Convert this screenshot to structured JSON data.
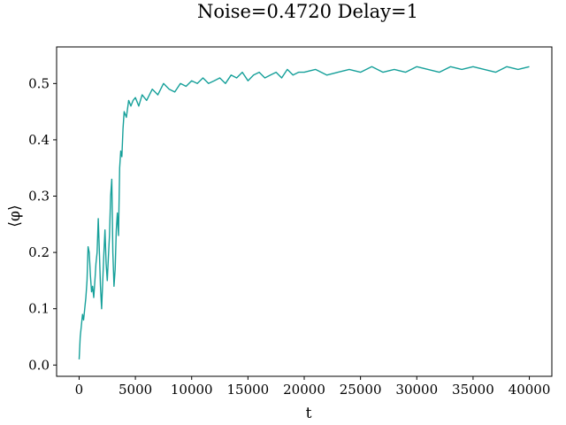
{
  "chart_data": {
    "type": "line",
    "title": "Noise=0.4720 Delay=1",
    "xlabel": "t",
    "ylabel": "⟨φ⟩",
    "xlim": [
      -2000,
      42000
    ],
    "ylim": [
      -0.02,
      0.565
    ],
    "grid": false,
    "x_ticks": [
      0,
      5000,
      10000,
      15000,
      20000,
      25000,
      30000,
      35000,
      40000
    ],
    "x_tick_labels": [
      "0",
      "5000",
      "10000",
      "15000",
      "20000",
      "25000",
      "30000",
      "35000",
      "40000"
    ],
    "y_ticks": [
      0.0,
      0.1,
      0.2,
      0.3,
      0.4,
      0.5
    ],
    "y_tick_labels": [
      "0.0",
      "0.1",
      "0.2",
      "0.3",
      "0.4",
      "0.5"
    ],
    "series": [
      {
        "color": "#16a09a",
        "x": [
          0,
          100,
          200,
          300,
          400,
          500,
          600,
          700,
          800,
          900,
          1000,
          1100,
          1200,
          1300,
          1400,
          1500,
          1600,
          1700,
          1800,
          1900,
          2000,
          2100,
          2200,
          2300,
          2400,
          2500,
          2600,
          2700,
          2800,
          2900,
          3000,
          3100,
          3200,
          3300,
          3400,
          3500,
          3600,
          3700,
          3800,
          3900,
          4000,
          4200,
          4400,
          4600,
          4800,
          5000,
          5300,
          5600,
          6000,
          6500,
          7000,
          7500,
          8000,
          8500,
          9000,
          9500,
          10000,
          10500,
          11000,
          11500,
          12000,
          12500,
          13000,
          13500,
          14000,
          14500,
          15000,
          15500,
          16000,
          16500,
          17000,
          17500,
          18000,
          18500,
          19000,
          19500,
          20000,
          21000,
          22000,
          23000,
          24000,
          25000,
          26000,
          27000,
          28000,
          29000,
          30000,
          31000,
          32000,
          33000,
          34000,
          35000,
          36000,
          37000,
          38000,
          39000,
          40000
        ],
        "y": [
          0.01,
          0.05,
          0.07,
          0.09,
          0.08,
          0.1,
          0.12,
          0.15,
          0.21,
          0.2,
          0.16,
          0.13,
          0.14,
          0.12,
          0.15,
          0.18,
          0.2,
          0.26,
          0.2,
          0.14,
          0.1,
          0.15,
          0.2,
          0.24,
          0.18,
          0.15,
          0.19,
          0.23,
          0.3,
          0.33,
          0.2,
          0.14,
          0.17,
          0.24,
          0.27,
          0.23,
          0.35,
          0.38,
          0.37,
          0.42,
          0.45,
          0.44,
          0.47,
          0.46,
          0.47,
          0.475,
          0.46,
          0.48,
          0.47,
          0.49,
          0.48,
          0.5,
          0.49,
          0.485,
          0.5,
          0.495,
          0.505,
          0.5,
          0.51,
          0.5,
          0.505,
          0.51,
          0.5,
          0.515,
          0.51,
          0.52,
          0.505,
          0.515,
          0.52,
          0.51,
          0.515,
          0.52,
          0.51,
          0.525,
          0.515,
          0.52,
          0.52,
          0.525,
          0.515,
          0.52,
          0.525,
          0.52,
          0.53,
          0.52,
          0.525,
          0.52,
          0.53,
          0.525,
          0.52,
          0.53,
          0.525,
          0.53,
          0.525,
          0.52,
          0.53,
          0.525,
          0.53
        ]
      }
    ]
  }
}
